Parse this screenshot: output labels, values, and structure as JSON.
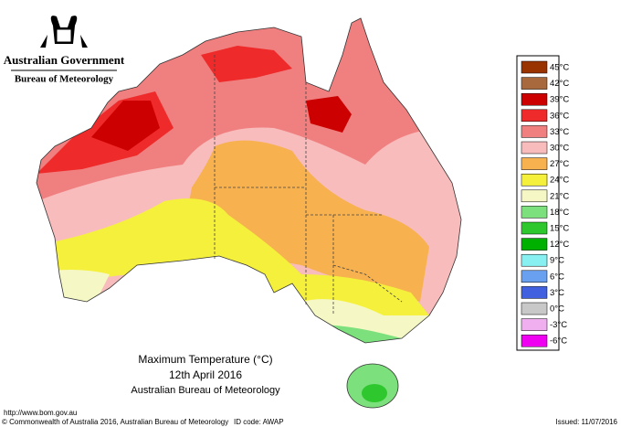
{
  "header": {
    "title": "Australian Government",
    "subtitle": "Bureau of Meteorology"
  },
  "legend": {
    "items": [
      {
        "label": "45°C",
        "color": "#993300"
      },
      {
        "label": "42°C",
        "color": "#a86a3c"
      },
      {
        "label": "39°C",
        "color": "#cc0000"
      },
      {
        "label": "36°C",
        "color": "#ee2a2a"
      },
      {
        "label": "33°C",
        "color": "#f08080"
      },
      {
        "label": "30°C",
        "color": "#f8bcbc"
      },
      {
        "label": "27°C",
        "color": "#f7b14e"
      },
      {
        "label": "24°C",
        "color": "#f5f03c"
      },
      {
        "label": "21°C",
        "color": "#f5f8c4"
      },
      {
        "label": "18°C",
        "color": "#7ce07c"
      },
      {
        "label": "15°C",
        "color": "#2ec82e"
      },
      {
        "label": "12°C",
        "color": "#00b000"
      },
      {
        "label": "9°C",
        "color": "#88f0f0"
      },
      {
        "label": "6°C",
        "color": "#6aa0f0"
      },
      {
        "label": "3°C",
        "color": "#4060e0"
      },
      {
        "label": "0°C",
        "color": "#c8c8c8"
      },
      {
        "label": "-3°C",
        "color": "#f0b0f0"
      },
      {
        "label": "-6°C",
        "color": "#f000f0"
      }
    ]
  },
  "map": {
    "title": "Maximum Temperature (°C)",
    "date": "12th April 2016",
    "source": "Australian Bureau of Meteorology"
  },
  "footer": {
    "url": "http://www.bom.gov.au",
    "copyright": "© Commonwealth of Australia 2016, Australian Bureau of Meteorology",
    "id_code": "ID code: AWAP",
    "issued": "Issued: 11/07/2016"
  }
}
